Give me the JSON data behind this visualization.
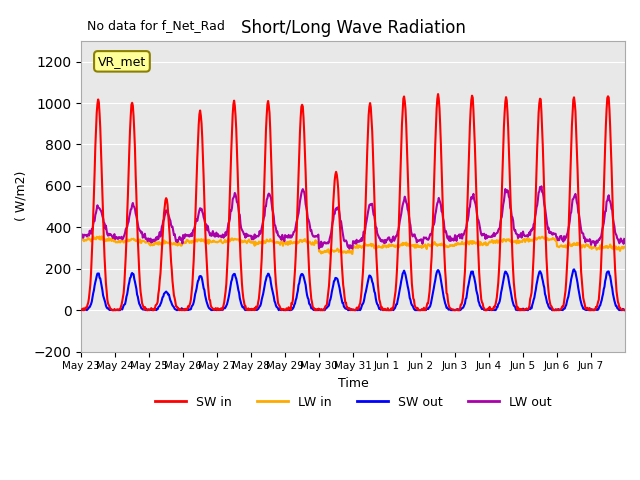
{
  "title": "Short/Long Wave Radiation",
  "subtitle": "No data for f_Net_Rad",
  "ylabel": "( W/m2)",
  "xlabel": "Time",
  "ylim": [
    -200,
    1300
  ],
  "yticks": [
    -200,
    0,
    200,
    400,
    600,
    800,
    1000,
    1200
  ],
  "background_color": "#ffffff",
  "plot_bg_color": "#e8e8e8",
  "legend_label": "VR_met",
  "legend_box_color": "#ffff99",
  "legend_box_edge": "#8B8000",
  "colors": {
    "SW_in": "#ff0000",
    "LW_in": "#ffaa00",
    "SW_out": "#0000ff",
    "LW_out": "#aa00aa"
  },
  "line_width": 1.5,
  "n_days": 16,
  "SW_in_peaks": [
    1020,
    1005,
    540,
    960,
    1010,
    1010,
    1000,
    670,
    1000,
    1035,
    1040,
    1035,
    1025,
    1020,
    1025,
    1040
  ],
  "SW_out_peaks": [
    175,
    180,
    90,
    165,
    175,
    175,
    175,
    155,
    165,
    185,
    190,
    185,
    185,
    185,
    195,
    185
  ],
  "LW_in_base": [
    340,
    330,
    320,
    330,
    330,
    325,
    325,
    280,
    305,
    310,
    310,
    320,
    330,
    340,
    310,
    300
  ],
  "LW_out_base": [
    360,
    350,
    340,
    360,
    355,
    350,
    355,
    310,
    330,
    340,
    340,
    355,
    360,
    365,
    340,
    330
  ],
  "LW_out_day_peak": [
    500,
    505,
    475,
    490,
    560,
    560,
    580,
    500,
    510,
    535,
    530,
    555,
    580,
    595,
    555,
    545
  ],
  "x_tick_labels": [
    "May 23",
    "May 24",
    "May 25",
    "May 26",
    "May 27",
    "May 28",
    "May 29",
    "May 30",
    "May 31",
    "Jun 1",
    "Jun 2",
    "Jun 3",
    "Jun 4",
    "Jun 5",
    "Jun 6",
    "Jun 7"
  ]
}
